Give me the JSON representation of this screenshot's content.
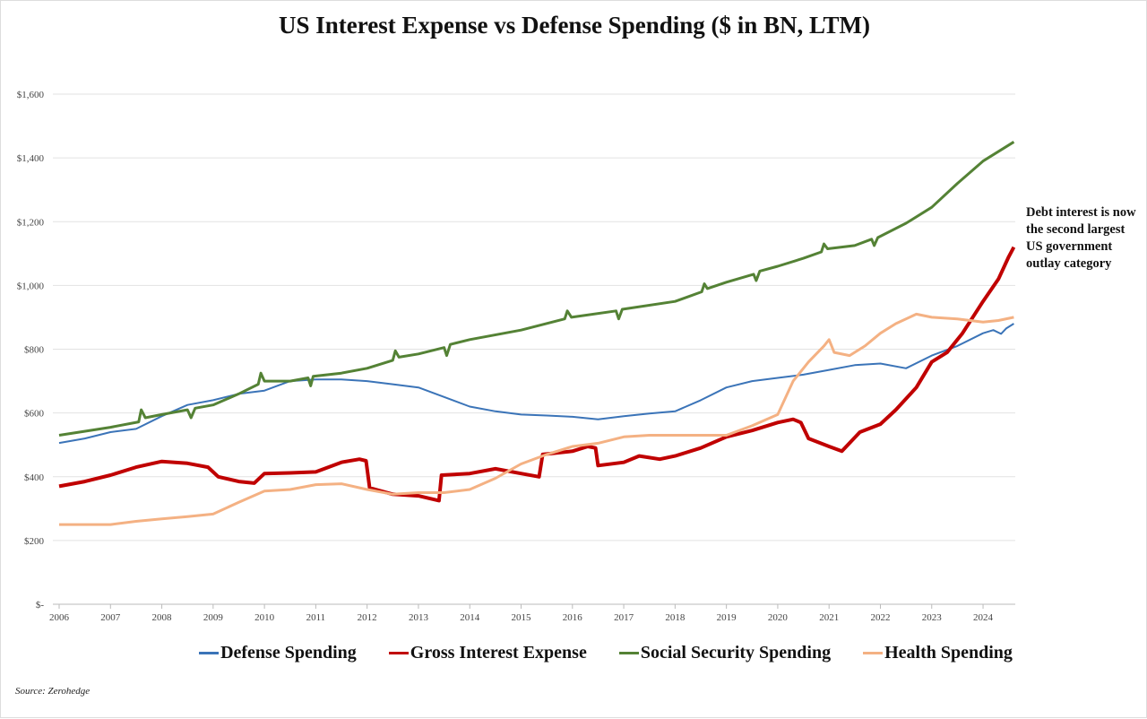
{
  "chart_data": {
    "type": "line",
    "title": "US Interest Expense vs Defense Spending ($ in BN, LTM)",
    "xlabel": "",
    "ylabel": "",
    "xlim": [
      2006,
      2024.6
    ],
    "ylim": [
      0,
      1600
    ],
    "x_ticks": [
      "2006",
      "2007",
      "2008",
      "2009",
      "2010",
      "2011",
      "2012",
      "2013",
      "2014",
      "2015",
      "2016",
      "2017",
      "2018",
      "2019",
      "2020",
      "2021",
      "2022",
      "2023",
      "2024"
    ],
    "y_ticks": [
      {
        "value": 0,
        "label": "$-"
      },
      {
        "value": 200,
        "label": "$200"
      },
      {
        "value": 400,
        "label": "$400"
      },
      {
        "value": 600,
        "label": "$600"
      },
      {
        "value": 800,
        "label": "$800"
      },
      {
        "value": 1000,
        "label": "$1,000"
      },
      {
        "value": 1200,
        "label": "$1,200"
      },
      {
        "value": 1400,
        "label": "$1,400"
      },
      {
        "value": 1600,
        "label": "$1,600"
      }
    ],
    "grid": true,
    "legend_placement": "bottom",
    "series": [
      {
        "name": "Defense Spending",
        "color": "#3b74b8",
        "width": 2,
        "points": [
          [
            2006,
            506
          ],
          [
            2006.5,
            520
          ],
          [
            2007,
            540
          ],
          [
            2007.5,
            550
          ],
          [
            2008,
            590
          ],
          [
            2008.5,
            625
          ],
          [
            2009,
            640
          ],
          [
            2009.5,
            660
          ],
          [
            2010,
            670
          ],
          [
            2010.5,
            700
          ],
          [
            2011,
            705
          ],
          [
            2011.5,
            705
          ],
          [
            2012,
            700
          ],
          [
            2012.5,
            690
          ],
          [
            2013,
            680
          ],
          [
            2013.5,
            650
          ],
          [
            2014,
            620
          ],
          [
            2014.5,
            605
          ],
          [
            2015,
            595
          ],
          [
            2015.5,
            592
          ],
          [
            2016,
            588
          ],
          [
            2016.5,
            580
          ],
          [
            2017,
            590
          ],
          [
            2017.5,
            598
          ],
          [
            2018,
            605
          ],
          [
            2018.5,
            640
          ],
          [
            2019,
            680
          ],
          [
            2019.5,
            700
          ],
          [
            2020,
            710
          ],
          [
            2020.5,
            720
          ],
          [
            2021,
            735
          ],
          [
            2021.5,
            750
          ],
          [
            2022,
            755
          ],
          [
            2022.5,
            740
          ],
          [
            2023,
            780
          ],
          [
            2023.5,
            810
          ],
          [
            2024,
            850
          ],
          [
            2024.2,
            860
          ],
          [
            2024.35,
            848
          ],
          [
            2024.45,
            865
          ],
          [
            2024.6,
            880
          ]
        ]
      },
      {
        "name": "Gross Interest Expense",
        "color": "#c00000",
        "width": 4,
        "points": [
          [
            2006,
            370
          ],
          [
            2006.5,
            385
          ],
          [
            2007,
            405
          ],
          [
            2007.5,
            430
          ],
          [
            2008,
            448
          ],
          [
            2008.5,
            442
          ],
          [
            2008.9,
            430
          ],
          [
            2009.1,
            400
          ],
          [
            2009.5,
            385
          ],
          [
            2009.8,
            380
          ],
          [
            2010,
            410
          ],
          [
            2010.5,
            412
          ],
          [
            2011,
            415
          ],
          [
            2011.5,
            445
          ],
          [
            2011.85,
            455
          ],
          [
            2011.98,
            450
          ],
          [
            2012.05,
            365
          ],
          [
            2012.5,
            345
          ],
          [
            2013,
            340
          ],
          [
            2013.4,
            325
          ],
          [
            2013.45,
            405
          ],
          [
            2014,
            410
          ],
          [
            2014.5,
            425
          ],
          [
            2015,
            410
          ],
          [
            2015.35,
            400
          ],
          [
            2015.42,
            470
          ],
          [
            2016,
            480
          ],
          [
            2016.3,
            495
          ],
          [
            2016.45,
            490
          ],
          [
            2016.5,
            435
          ],
          [
            2017,
            445
          ],
          [
            2017.3,
            465
          ],
          [
            2017.7,
            455
          ],
          [
            2018,
            465
          ],
          [
            2018.5,
            490
          ],
          [
            2019,
            525
          ],
          [
            2019.5,
            545
          ],
          [
            2020,
            570
          ],
          [
            2020.3,
            580
          ],
          [
            2020.45,
            570
          ],
          [
            2020.6,
            520
          ],
          [
            2021,
            495
          ],
          [
            2021.25,
            480
          ],
          [
            2021.6,
            540
          ],
          [
            2022,
            565
          ],
          [
            2022.3,
            610
          ],
          [
            2022.7,
            680
          ],
          [
            2023,
            760
          ],
          [
            2023.3,
            790
          ],
          [
            2023.6,
            850
          ],
          [
            2024,
            950
          ],
          [
            2024.3,
            1020
          ],
          [
            2024.5,
            1090
          ],
          [
            2024.6,
            1120
          ]
        ]
      },
      {
        "name": "Social Security Spending",
        "color": "#548235",
        "width": 3,
        "points": [
          [
            2006,
            530
          ],
          [
            2007,
            555
          ],
          [
            2007.55,
            572
          ],
          [
            2007.6,
            610
          ],
          [
            2007.68,
            585
          ],
          [
            2008,
            595
          ],
          [
            2008.5,
            610
          ],
          [
            2008.57,
            585
          ],
          [
            2008.65,
            615
          ],
          [
            2009,
            625
          ],
          [
            2009.5,
            660
          ],
          [
            2009.88,
            690
          ],
          [
            2009.93,
            725
          ],
          [
            2010,
            700
          ],
          [
            2010.5,
            700
          ],
          [
            2010.85,
            710
          ],
          [
            2010.9,
            685
          ],
          [
            2010.95,
            715
          ],
          [
            2011.5,
            725
          ],
          [
            2012,
            740
          ],
          [
            2012.5,
            765
          ],
          [
            2012.55,
            795
          ],
          [
            2012.62,
            775
          ],
          [
            2013,
            785
          ],
          [
            2013.5,
            805
          ],
          [
            2013.55,
            780
          ],
          [
            2013.62,
            815
          ],
          [
            2014,
            830
          ],
          [
            2015,
            860
          ],
          [
            2015.85,
            895
          ],
          [
            2015.9,
            920
          ],
          [
            2015.98,
            900
          ],
          [
            2016.85,
            920
          ],
          [
            2016.9,
            895
          ],
          [
            2016.97,
            925
          ],
          [
            2018,
            950
          ],
          [
            2018.52,
            980
          ],
          [
            2018.57,
            1005
          ],
          [
            2018.63,
            990
          ],
          [
            2019,
            1010
          ],
          [
            2019.53,
            1035
          ],
          [
            2019.58,
            1015
          ],
          [
            2019.65,
            1045
          ],
          [
            2020,
            1060
          ],
          [
            2020.5,
            1085
          ],
          [
            2020.85,
            1105
          ],
          [
            2020.9,
            1130
          ],
          [
            2020.97,
            1115
          ],
          [
            2021.5,
            1125
          ],
          [
            2021.83,
            1145
          ],
          [
            2021.88,
            1125
          ],
          [
            2021.95,
            1150
          ],
          [
            2022.5,
            1195
          ],
          [
            2023,
            1245
          ],
          [
            2023.5,
            1320
          ],
          [
            2024,
            1390
          ],
          [
            2024.6,
            1450
          ]
        ]
      },
      {
        "name": "Health Spending",
        "color": "#f4b183",
        "width": 3,
        "points": [
          [
            2006,
            250
          ],
          [
            2007,
            250
          ],
          [
            2007.5,
            260
          ],
          [
            2008,
            268
          ],
          [
            2008.5,
            275
          ],
          [
            2009,
            283
          ],
          [
            2009.5,
            320
          ],
          [
            2010,
            355
          ],
          [
            2010.5,
            360
          ],
          [
            2011,
            375
          ],
          [
            2011.5,
            378
          ],
          [
            2012,
            360
          ],
          [
            2012.5,
            345
          ],
          [
            2013,
            350
          ],
          [
            2013.5,
            350
          ],
          [
            2014,
            360
          ],
          [
            2014.5,
            395
          ],
          [
            2015,
            440
          ],
          [
            2015.5,
            470
          ],
          [
            2016,
            495
          ],
          [
            2016.5,
            505
          ],
          [
            2017,
            525
          ],
          [
            2017.5,
            530
          ],
          [
            2018,
            530
          ],
          [
            2018.5,
            530
          ],
          [
            2019,
            530
          ],
          [
            2019.5,
            560
          ],
          [
            2020,
            595
          ],
          [
            2020.3,
            700
          ],
          [
            2020.6,
            760
          ],
          [
            2020.9,
            810
          ],
          [
            2021,
            830
          ],
          [
            2021.1,
            790
          ],
          [
            2021.4,
            780
          ],
          [
            2021.7,
            810
          ],
          [
            2022,
            850
          ],
          [
            2022.3,
            880
          ],
          [
            2022.7,
            910
          ],
          [
            2023,
            900
          ],
          [
            2023.5,
            895
          ],
          [
            2024,
            885
          ],
          [
            2024.3,
            890
          ],
          [
            2024.6,
            900
          ]
        ]
      }
    ],
    "annotation": "Debt interest is now the second largest US government outlay category",
    "source": "Source: Zerohedge"
  }
}
